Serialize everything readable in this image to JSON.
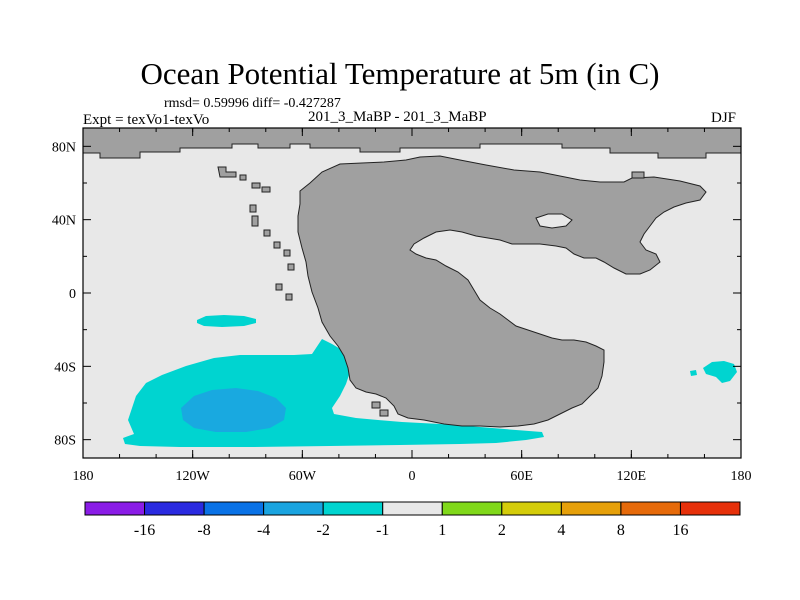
{
  "header": {
    "title": "Ocean Potential Temperature at 5m (in C)",
    "stats": "rmsd= 0.59996 diff= -0.427287",
    "subtitle": "201_3_MaBP - 201_3_MaBP",
    "experiment": "Expt = texVo1-texVo",
    "season": "DJF"
  },
  "map": {
    "x_ticks": [
      "180",
      "120W",
      "60W",
      "0",
      "60E",
      "120E",
      "180"
    ],
    "y_ticks": [
      "80N",
      "40N",
      "0",
      "40S",
      "80S"
    ],
    "colors": {
      "land": "#a0a0a0",
      "ocean_neutral": "#e8e8e8",
      "anomaly_minus_1_to_minus_2": "#00d4d0",
      "anomaly_minus_2_to_minus_4": "#19a9e0"
    }
  },
  "colorbar": {
    "labels": [
      "-16",
      "-8",
      "-4",
      "-2",
      "-1",
      "1",
      "2",
      "4",
      "8",
      "16"
    ],
    "colors": [
      "#8a1ce6",
      "#2a2ae0",
      "#0a72e6",
      "#1aa4e0",
      "#00d4d0",
      "#e8e8e8",
      "#80d81a",
      "#d4cc0a",
      "#e6a00a",
      "#e66a0a",
      "#e6300a"
    ]
  },
  "chart_data": {
    "type": "heatmap",
    "title": "Ocean Potential Temperature at 5m (in C)",
    "x_range": [
      -180,
      180
    ],
    "y_range": [
      -90,
      90
    ],
    "x_tick_values": [
      -180,
      -120,
      -60,
      0,
      60,
      120,
      180
    ],
    "y_tick_values": [
      80,
      40,
      0,
      -40,
      -80
    ],
    "levels": [
      -16,
      -8,
      -4,
      -2,
      -1,
      1,
      2,
      4,
      8,
      16
    ],
    "units": "C"
  }
}
